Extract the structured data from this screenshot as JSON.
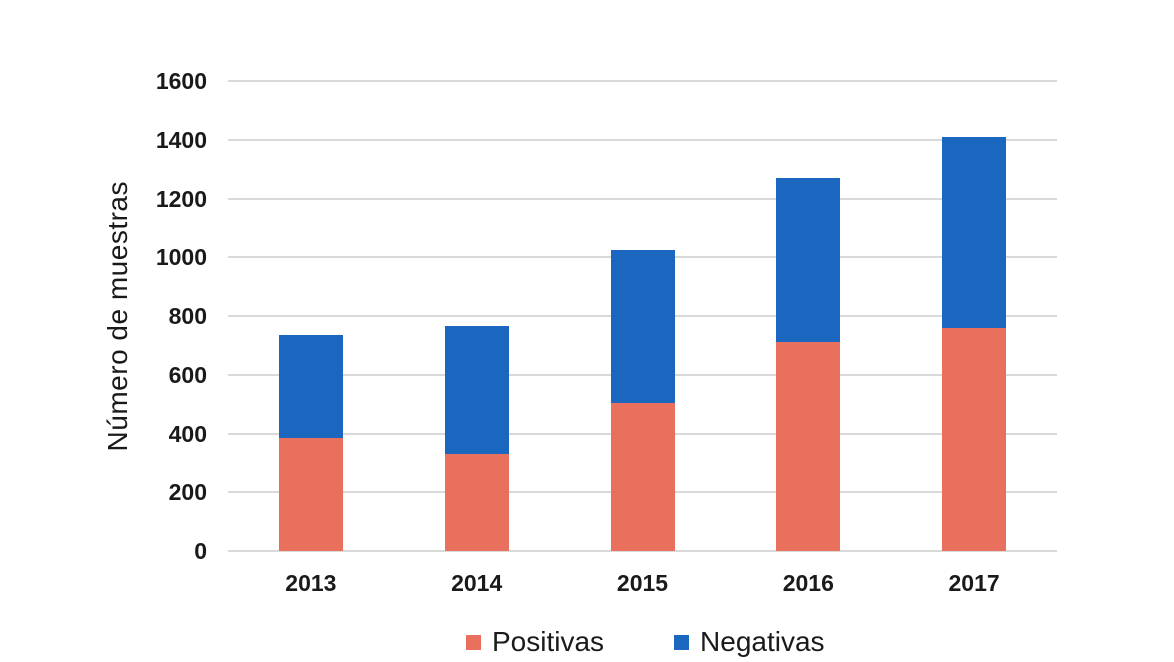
{
  "chart_data": {
    "type": "bar",
    "stacked": true,
    "title": "",
    "xlabel": "",
    "ylabel": "Número de muestras",
    "categories": [
      "2013",
      "2014",
      "2015",
      "2016",
      "2017"
    ],
    "series": [
      {
        "name": "Positivas",
        "color": "#E8705C",
        "values": [
          385,
          330,
          505,
          710,
          760
        ]
      },
      {
        "name": "Negativas",
        "color": "#1B66BF",
        "values": [
          350,
          435,
          520,
          560,
          650
        ]
      }
    ],
    "totals": [
      735,
      765,
      1025,
      1270,
      1410
    ],
    "ylim": [
      0,
      1600
    ],
    "ytick_step": 200,
    "yticks": [
      "0",
      "200",
      "400",
      "600",
      "800",
      "1000",
      "1200",
      "1400",
      "1600"
    ],
    "grid": true,
    "legend_position": "bottom-center"
  },
  "colors": {
    "background": "#FFFFFF",
    "gridline": "#D9D9D9",
    "text": "#1A1A1A",
    "positivas": "#E8705C",
    "negativas": "#1B66BF"
  }
}
